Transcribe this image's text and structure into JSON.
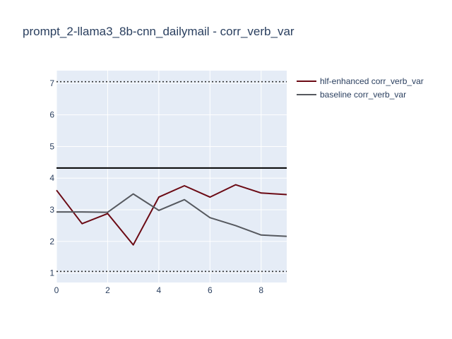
{
  "chart_data": {
    "type": "line",
    "title": "prompt_2-llama3_8b-cnn_dailymail - corr_verb_var",
    "xlabel": "",
    "ylabel": "",
    "xlim": [
      0,
      9
    ],
    "ylim": [
      0.7,
      7.4
    ],
    "x_ticks": [
      0,
      2,
      4,
      6,
      8
    ],
    "y_ticks": [
      1,
      2,
      3,
      4,
      5,
      6,
      7
    ],
    "grid": true,
    "legend_position": "top-right",
    "x": [
      0,
      1,
      2,
      3,
      4,
      5,
      6,
      7,
      8,
      9
    ],
    "series": [
      {
        "name": "hlf-enhanced corr_verb_var",
        "color": "#6b0a14",
        "values": [
          3.62,
          2.56,
          2.88,
          1.89,
          3.4,
          3.76,
          3.4,
          3.79,
          3.53,
          3.48
        ]
      },
      {
        "name": "baseline corr_verb_var",
        "color": "#56595f",
        "values": [
          2.93,
          2.93,
          2.92,
          3.5,
          2.98,
          3.32,
          2.75,
          2.5,
          2.2,
          2.16
        ]
      }
    ],
    "reference_lines": [
      {
        "y": 4.32,
        "style": "solid",
        "color": "#000000"
      },
      {
        "y": 7.05,
        "style": "dotted",
        "color": "#333333"
      },
      {
        "y": 1.05,
        "style": "dotted",
        "color": "#333333"
      }
    ]
  }
}
